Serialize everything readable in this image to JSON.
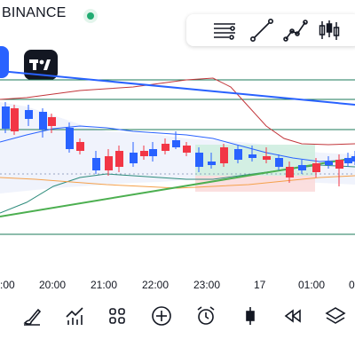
{
  "header": {
    "exchange_label": "BINANCE"
  },
  "colors": {
    "up": "#2962ff",
    "down": "#f23645",
    "bb_upper": "#c2363b",
    "trend_blue": "#2962ff",
    "trend_green": "#4caf50",
    "level_green": "#1b7a58",
    "accent": "#2962ff"
  },
  "toolbar": {
    "icons": [
      "lines-icon",
      "trendline-icon",
      "path-icon",
      "candles-icon"
    ]
  },
  "chart_data": {
    "type": "candlestick",
    "x_tick_labels": [
      "20:00",
      "21:00",
      "22:00",
      "23:00",
      "17",
      "01:00"
    ],
    "candles_direction": [
      "up",
      "down",
      "up",
      "up",
      "down",
      "up",
      "down",
      "up",
      "down",
      "down",
      "up",
      "down",
      "up",
      "down",
      "up",
      "down",
      "up",
      "up",
      "down",
      "up",
      "up",
      "down",
      "up",
      "down",
      "up",
      "down",
      "up",
      "down",
      "up",
      "up"
    ]
  },
  "xaxis": {
    "labels": [
      ":00",
      "20:00",
      "21:00",
      "22:00",
      "23:00",
      "17",
      "01:00",
      "0"
    ]
  },
  "bottom_toolbar": {
    "icons": [
      "brush-icon",
      "indicators-icon",
      "grid-icon",
      "add-icon",
      "alarm-icon",
      "candle-icon",
      "replay-icon",
      "layers-icon"
    ]
  }
}
